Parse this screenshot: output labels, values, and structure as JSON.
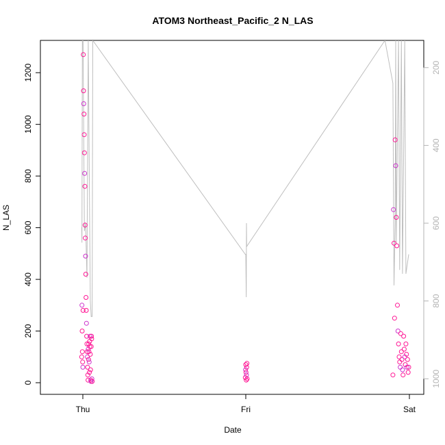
{
  "chart_data": {
    "type": "scatter",
    "title": "ATOM3 Northeast_Pacific_2 N_LAS",
    "xlabel": "Date",
    "ylabel": "N_LAS",
    "x_ticks": [
      "Thu",
      "Fri",
      "Sat"
    ],
    "y_ticks": [
      "0",
      "200",
      "400",
      "600",
      "800",
      "1000",
      "1200"
    ],
    "y_right_ticks": [
      "200",
      "400",
      "600",
      "800",
      "1000"
    ],
    "ylim": [
      -45,
      1325
    ],
    "y_right_lim": [
      1040,
      130
    ],
    "grid": false,
    "legend": "none",
    "colors": {
      "points_main": "#ff1493",
      "points_alt": "#cc33cc",
      "line": "#bebebe",
      "axis": "#000000",
      "right_axis": "#b3b3b3"
    },
    "series": [
      {
        "type": "scatter",
        "x": [
          "Wed 23:50",
          "Wed 23:52",
          "Wed 23:54",
          "Wed 23:56",
          "Wed 23:58",
          "Thu 00:00",
          "Thu 00:02",
          "Thu 00:04",
          "Thu 00:06",
          "Thu 00:08",
          "Thu 00:10",
          "Thu 00:12",
          "Thu 00:14",
          "Thu 00:16",
          "Thu 00:18",
          "Thu 00:20",
          "Thu 00:22",
          "Thu 00:24",
          "Thu 00:26",
          "Thu 00:28",
          "Thu 00:30",
          "Thu 00:32",
          "Thu 00:34",
          "Thu 00:36",
          "Thu 00:38",
          "Thu 00:40",
          "Thu 00:42",
          "Thu 00:44",
          "Thu 00:46",
          "Thu 00:48",
          "Thu 00:50",
          "Thu 00:52",
          "Thu 00:54",
          "Thu 00:56",
          "Thu 00:58",
          "Thu 01:00",
          "Thu 01:02",
          "Thu 01:04",
          "Thu 01:06",
          "Thu 01:08",
          "Thu 01:10",
          "Thu 01:12",
          "Thu 01:14",
          "Thu 01:16",
          "Thu 01:18",
          "Thu 01:20",
          "Thu 01:22"
        ],
        "y": [
          100,
          300,
          200,
          120,
          80,
          60,
          280,
          1270,
          1130,
          1080,
          1040,
          960,
          890,
          810,
          760,
          610,
          560,
          490,
          420,
          330,
          280,
          230,
          180,
          150,
          120,
          100,
          60,
          30,
          10,
          130,
          90,
          150,
          120,
          80,
          40,
          160,
          140,
          180,
          110,
          50,
          10,
          5,
          140,
          180,
          170,
          15,
          5
        ]
      },
      {
        "type": "scatter",
        "x": [
          "Thu 23:56",
          "Thu 23:58",
          "Fri 00:00",
          "Fri 00:02",
          "Fri 00:04",
          "Fri 00:06",
          "Fri 00:08",
          "Fri 00:10",
          "Fri 00:12"
        ],
        "y": [
          20,
          50,
          70,
          40,
          10,
          30,
          60,
          75,
          15
        ]
      },
      {
        "type": "scatter",
        "x": [
          "Fri 21:40",
          "Fri 21:45",
          "Fri 21:50",
          "Fri 21:55",
          "Fri 22:00",
          "Fri 22:05",
          "Fri 22:10",
          "Fri 22:15",
          "Fri 22:20",
          "Fri 22:25",
          "Fri 22:30",
          "Fri 22:35",
          "Fri 22:40",
          "Fri 22:45",
          "Fri 22:50",
          "Fri 22:55",
          "Fri 23:00",
          "Fri 23:05",
          "Fri 23:10",
          "Fri 23:15",
          "Fri 23:20",
          "Fri 23:25",
          "Fri 23:30",
          "Fri 23:35",
          "Fri 23:40",
          "Fri 23:45",
          "Fri 23:50",
          "Fri 23:55",
          "Sat 00:00"
        ],
        "y": [
          30,
          670,
          540,
          250,
          940,
          840,
          640,
          530,
          300,
          200,
          150,
          100,
          80,
          60,
          190,
          120,
          90,
          50,
          30,
          180,
          130,
          100,
          70,
          150,
          110,
          60,
          90,
          40,
          60
        ]
      },
      {
        "type": "line",
        "axis": "right",
        "x": [
          "Wed 23:50",
          "Wed 23:52",
          "Wed 23:56",
          "Wed 23:58",
          "Thu 00:02",
          "Thu 00:14",
          "Thu 00:24",
          "Thu 00:36",
          "Thu 00:48",
          "Thu 01:06",
          "Thu 01:14",
          "Thu 01:22",
          "Thu 01:28",
          "Thu 23:56",
          "Fri 00:00",
          "Fri 00:04",
          "Fri 00:06",
          "Fri 00:08",
          "Fri 20:30",
          "Fri 21:40",
          "Fri 21:50",
          "Fri 22:00",
          "Fri 22:05",
          "Fri 22:10",
          "Fri 22:30",
          "Fri 22:40",
          "Fri 22:55",
          "Fri 23:05",
          "Fri 23:25",
          "Fri 23:35",
          "Sat 00:00"
        ],
        "y": [
          610,
          650,
          130,
          130,
          130,
          620,
          600,
          740,
          130,
          800,
          840,
          840,
          130,
          680,
          680,
          790,
          600,
          660,
          130,
          240,
          760,
          600,
          130,
          650,
          130,
          720,
          130,
          730,
          130,
          730,
          680
        ]
      }
    ]
  }
}
